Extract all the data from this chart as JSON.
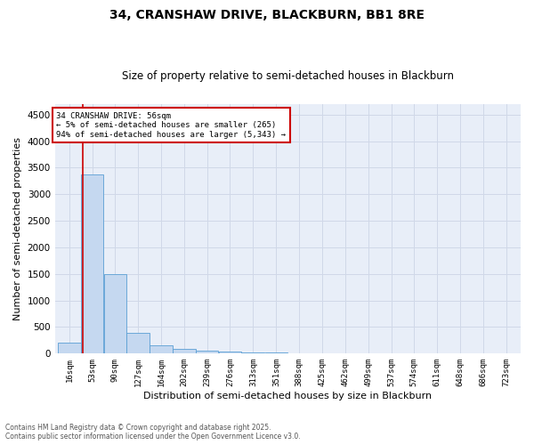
{
  "title1": "34, CRANSHAW DRIVE, BLACKBURN, BB1 8RE",
  "title2": "Size of property relative to semi-detached houses in Blackburn",
  "xlabel": "Distribution of semi-detached houses by size in Blackburn",
  "ylabel": "Number of semi-detached properties",
  "footnote1": "Contains HM Land Registry data © Crown copyright and database right 2025.",
  "footnote2": "Contains public sector information licensed under the Open Government Licence v3.0.",
  "annotation_title": "34 CRANSHAW DRIVE: 56sqm",
  "annotation_line1": "← 5% of semi-detached houses are smaller (265)",
  "annotation_line2": "94% of semi-detached houses are larger (5,343) →",
  "property_size": 56,
  "bar_left_edges": [
    16,
    53,
    90,
    127,
    164,
    202,
    239,
    276,
    313,
    351,
    388,
    425,
    462,
    499,
    537,
    574,
    611,
    648,
    686,
    723
  ],
  "bar_widths": [
    37,
    37,
    37,
    37,
    38,
    37,
    37,
    37,
    38,
    37,
    37,
    37,
    37,
    38,
    37,
    37,
    37,
    38,
    37,
    37
  ],
  "bar_heights": [
    200,
    3380,
    1490,
    390,
    155,
    85,
    50,
    45,
    30,
    25,
    0,
    0,
    0,
    0,
    0,
    0,
    0,
    0,
    0,
    0
  ],
  "bar_color": "#c5d8f0",
  "bar_edge_color": "#5a9fd4",
  "vline_color": "#cc0000",
  "vline_x": 56,
  "ylim": [
    0,
    4700
  ],
  "yticks": [
    0,
    500,
    1000,
    1500,
    2000,
    2500,
    3000,
    3500,
    4000,
    4500
  ],
  "grid_color": "#d0d8e8",
  "background_color": "#e8eef8",
  "annotation_box_color": "#cc0000",
  "title1_fontsize": 10,
  "title2_fontsize": 8.5,
  "tick_label_fontsize": 6.5,
  "ylabel_fontsize": 8,
  "xlabel_fontsize": 8,
  "annotation_fontsize": 6.5
}
